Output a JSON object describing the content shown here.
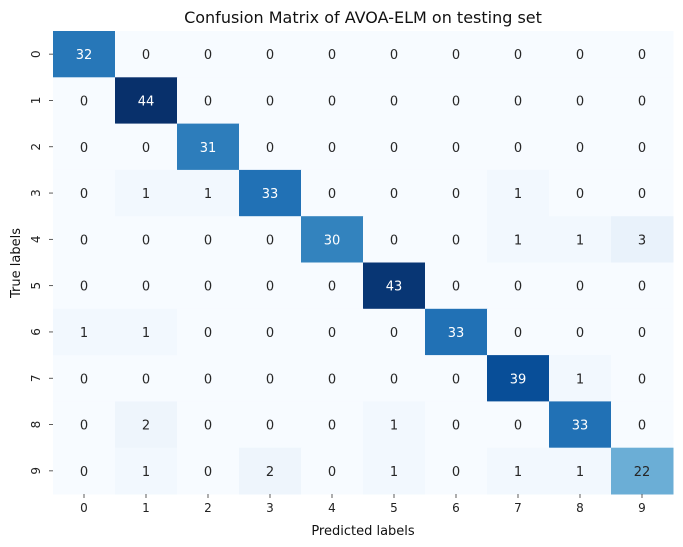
{
  "chart_data": {
    "type": "heatmap",
    "title": "Confusion Matrix of AVOA-ELM on testing set",
    "xlabel": "Predicted labels",
    "ylabel": "True labels",
    "x_categories": [
      "0",
      "1",
      "2",
      "3",
      "4",
      "5",
      "6",
      "7",
      "8",
      "9"
    ],
    "y_categories": [
      "0",
      "1",
      "2",
      "3",
      "4",
      "5",
      "6",
      "7",
      "8",
      "9"
    ],
    "values": [
      [
        32,
        0,
        0,
        0,
        0,
        0,
        0,
        0,
        0,
        0
      ],
      [
        0,
        44,
        0,
        0,
        0,
        0,
        0,
        0,
        0,
        0
      ],
      [
        0,
        0,
        31,
        0,
        0,
        0,
        0,
        0,
        0,
        0
      ],
      [
        0,
        1,
        1,
        33,
        0,
        0,
        0,
        1,
        0,
        0
      ],
      [
        0,
        0,
        0,
        0,
        30,
        0,
        0,
        1,
        1,
        3
      ],
      [
        0,
        0,
        0,
        0,
        0,
        43,
        0,
        0,
        0,
        0
      ],
      [
        1,
        1,
        0,
        0,
        0,
        0,
        33,
        0,
        0,
        0
      ],
      [
        0,
        0,
        0,
        0,
        0,
        0,
        0,
        39,
        1,
        0
      ],
      [
        0,
        2,
        0,
        0,
        0,
        1,
        0,
        0,
        33,
        0
      ],
      [
        0,
        1,
        0,
        2,
        0,
        1,
        0,
        1,
        1,
        22
      ]
    ],
    "colormap": "Blues",
    "value_range": [
      0,
      44
    ],
    "colorbar": false,
    "grid": false
  }
}
